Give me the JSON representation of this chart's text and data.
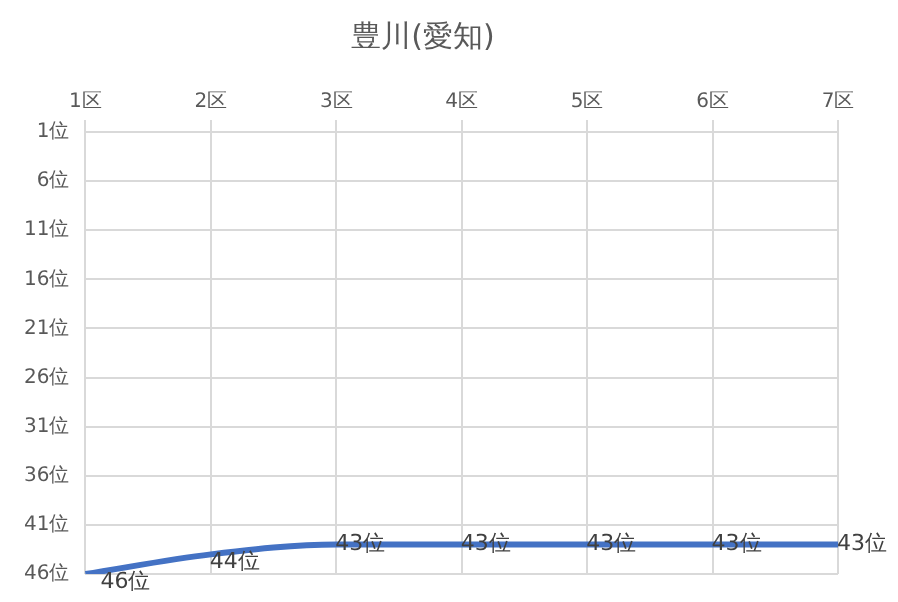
{
  "chart_data": {
    "type": "line",
    "title": "豊川(愛知)",
    "categories": [
      "1区",
      "2区",
      "3区",
      "4区",
      "5区",
      "6区",
      "7区"
    ],
    "series": [
      {
        "color": "#4472c4",
        "values": [
          46,
          44,
          43,
          43,
          43,
          43,
          43
        ],
        "value_labels": [
          "46位",
          "44位",
          "43位",
          "43位",
          "43位",
          "43位",
          "43位"
        ]
      }
    ],
    "ylim": [
      46,
      1
    ],
    "yticks": [
      {
        "value": 1,
        "label": "1位"
      },
      {
        "value": 6,
        "label": "6位"
      },
      {
        "value": 11,
        "label": "11位"
      },
      {
        "value": 16,
        "label": "16位"
      },
      {
        "value": 21,
        "label": "21位"
      },
      {
        "value": 26,
        "label": "26位"
      },
      {
        "value": 31,
        "label": "31位"
      },
      {
        "value": 36,
        "label": "36位"
      },
      {
        "value": 41,
        "label": "41位"
      },
      {
        "value": 46,
        "label": "46位"
      }
    ],
    "grid": true,
    "legend": false,
    "marker": "none",
    "line_style": "solid"
  }
}
